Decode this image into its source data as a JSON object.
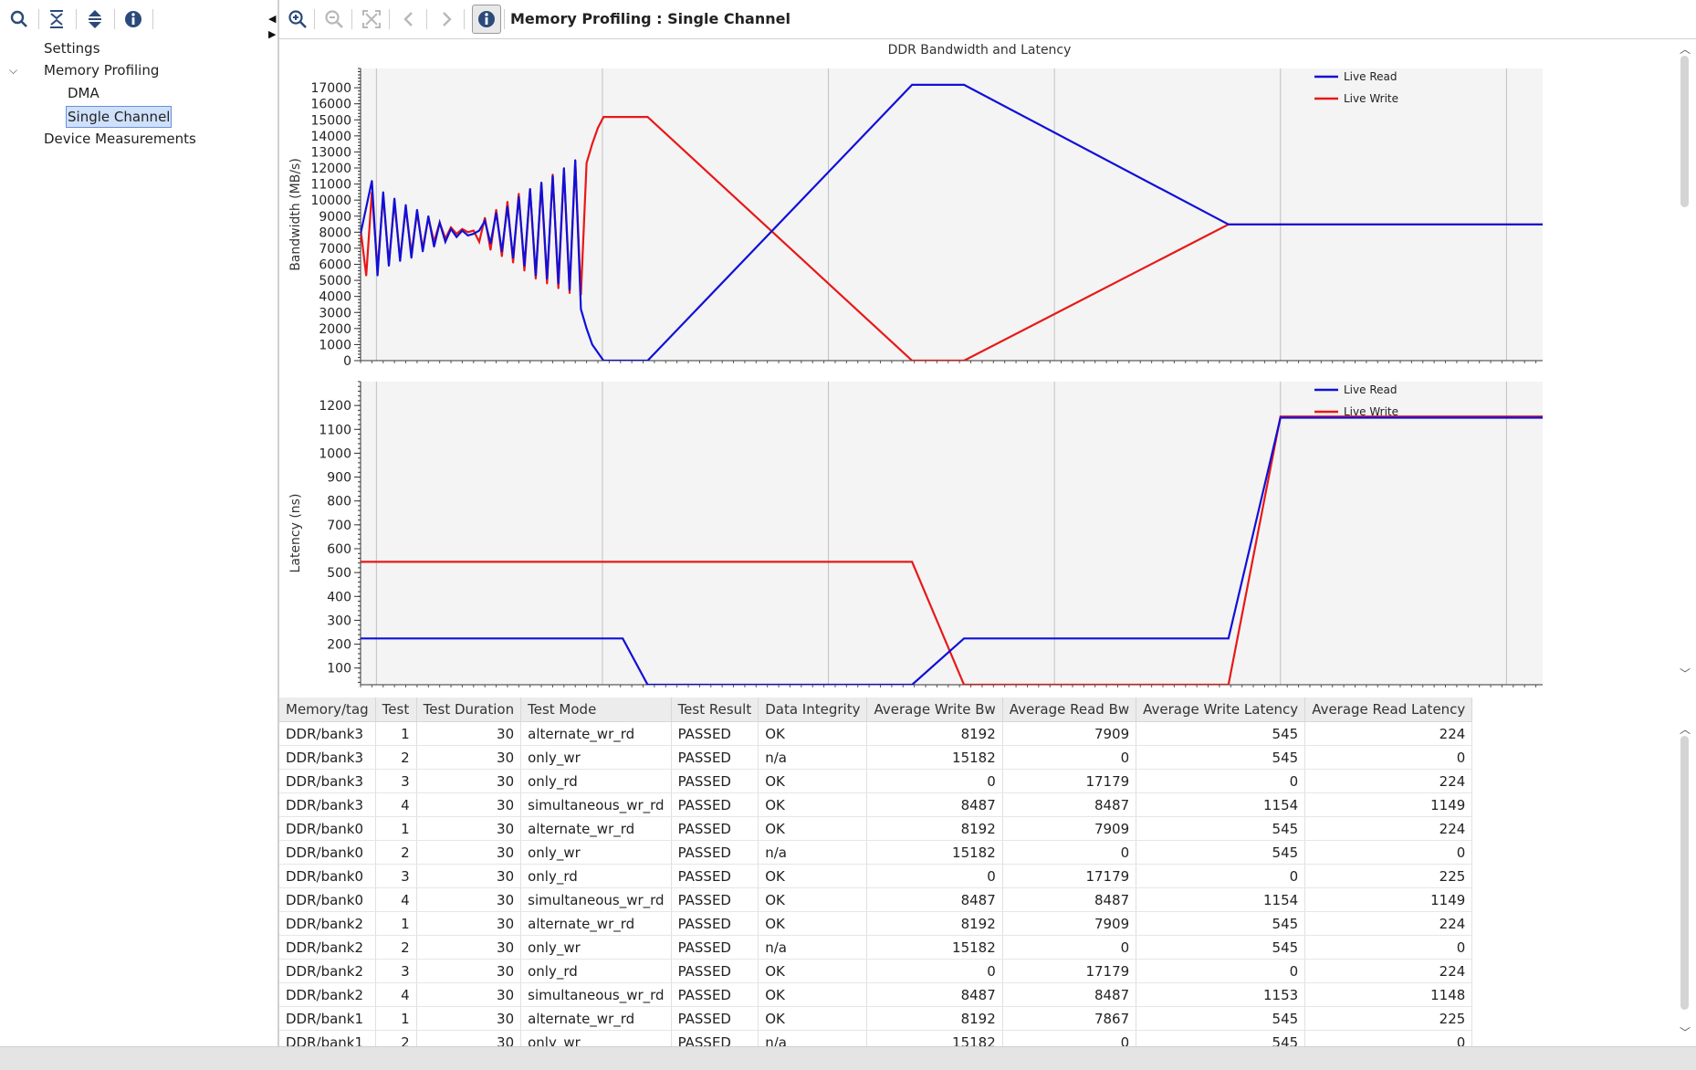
{
  "left_toolbar": {
    "icons": [
      "search-icon",
      "collapse-all-icon",
      "expand-all-icon",
      "info-icon"
    ]
  },
  "tree": {
    "items": [
      {
        "label": "Settings"
      },
      {
        "label": "Memory Profiling"
      },
      {
        "label": "DMA"
      },
      {
        "label": "Single Channel"
      },
      {
        "label": "Device Measurements"
      }
    ]
  },
  "right_toolbar": {
    "title": "Memory Profiling : Single Channel",
    "icons": [
      "zoom-in-icon",
      "zoom-out-icon",
      "fit-icon",
      "back-icon",
      "forward-icon",
      "info-icon"
    ]
  },
  "colors": {
    "read": "#1010d8",
    "write": "#e81818",
    "plot_bg": "#f4f4f4",
    "grid": "#c0c0c0"
  },
  "chart_data": [
    {
      "type": "line",
      "title": "DDR Bandwidth and Latency",
      "xlabel": "",
      "ylabel": "Bandwidth (MB/s)",
      "ylim": [
        0,
        18200
      ],
      "yticks": [
        0,
        1000,
        2000,
        3000,
        4000,
        5000,
        6000,
        7000,
        8000,
        9000,
        10000,
        11000,
        12000,
        13000,
        14000,
        15000,
        16000,
        17000
      ],
      "x_gridlines": [
        0.7,
        10.7,
        20.7,
        30.7,
        40.7,
        50.7
      ],
      "xlim": [
        0,
        52.3
      ],
      "legend": [
        "Live Read",
        "Live Write"
      ],
      "series": [
        {
          "name": "Live Read",
          "x": [
            0,
            0.5,
            0.75,
            1.0,
            1.25,
            1.5,
            1.75,
            2.0,
            2.25,
            2.5,
            2.75,
            3.0,
            3.25,
            3.5,
            3.75,
            4.0,
            4.25,
            4.5,
            4.75,
            5.0,
            5.25,
            5.5,
            5.75,
            6.0,
            6.25,
            6.5,
            6.75,
            7.0,
            7.25,
            7.5,
            7.75,
            8.0,
            8.25,
            8.5,
            8.75,
            9.0,
            9.25,
            9.5,
            9.75,
            10.0,
            10.25,
            10.5,
            10.75,
            12.7,
            24.4,
            26.7,
            38.4,
            40.7,
            52.3
          ],
          "y": [
            7900,
            11200,
            5300,
            10500,
            5900,
            10100,
            6200,
            9700,
            6400,
            9400,
            6800,
            9000,
            7100,
            8600,
            7400,
            8200,
            7700,
            8100,
            7800,
            7900,
            8100,
            8700,
            7300,
            9200,
            6800,
            9600,
            6400,
            10200,
            5900,
            10700,
            5300,
            11100,
            5100,
            11500,
            4800,
            12000,
            4400,
            12500,
            3200,
            2000,
            1000,
            500,
            0,
            0,
            17180,
            17180,
            8487,
            8487,
            8487
          ]
        },
        {
          "name": "Live Write",
          "x": [
            0,
            0.25,
            0.5,
            0.75,
            1.0,
            1.25,
            1.5,
            1.75,
            2.0,
            2.25,
            2.5,
            2.75,
            3.0,
            3.25,
            3.5,
            3.75,
            4.0,
            4.25,
            4.5,
            4.75,
            5.0,
            5.25,
            5.5,
            5.75,
            6.0,
            6.25,
            6.5,
            6.75,
            7.0,
            7.25,
            7.5,
            7.75,
            8.0,
            8.25,
            8.5,
            8.75,
            9.0,
            9.25,
            9.5,
            9.75,
            10.0,
            10.25,
            10.5,
            10.75,
            12.7,
            24.4,
            26.7,
            38.4,
            40.7,
            52.3
          ],
          "y": [
            8200,
            5300,
            10500,
            5700,
            10300,
            6000,
            9900,
            6300,
            9500,
            6700,
            9200,
            7000,
            8900,
            7400,
            8600,
            7600,
            8300,
            7900,
            8200,
            8000,
            8100,
            7400,
            8900,
            6900,
            9400,
            6500,
            9900,
            6100,
            10400,
            5600,
            10700,
            5100,
            11000,
            4800,
            11600,
            4500,
            11900,
            4200,
            12400,
            4100,
            12300,
            13500,
            14500,
            15180,
            15180,
            0,
            0,
            8487,
            8487,
            8487
          ]
        }
      ]
    },
    {
      "type": "line",
      "title": "",
      "xlabel": "",
      "ylabel": "Latency (ns)",
      "ylim": [
        30,
        1300
      ],
      "yticks": [
        100,
        200,
        300,
        400,
        500,
        600,
        700,
        800,
        900,
        1000,
        1100,
        1200
      ],
      "x_gridlines": [
        0.7,
        10.7,
        20.7,
        30.7,
        40.7,
        50.7
      ],
      "xlim": [
        0,
        52.3
      ],
      "legend": [
        "Live Read",
        "Live Write"
      ],
      "series": [
        {
          "name": "Live Read",
          "x": [
            0,
            11.6,
            12.7,
            24.4,
            26.7,
            38.4,
            40.7,
            52.3
          ],
          "y": [
            224,
            224,
            30,
            30,
            224,
            224,
            1149,
            1149
          ]
        },
        {
          "name": "Live Write",
          "x": [
            0,
            24.4,
            26.7,
            38.4,
            40.7,
            52.3
          ],
          "y": [
            545,
            545,
            30,
            30,
            1154,
            1154
          ]
        }
      ]
    }
  ],
  "table": {
    "columns": [
      "Memory/tag",
      "Test",
      "Test Duration",
      "Test Mode",
      "Test Result",
      "Data Integrity",
      "Average Write Bw",
      "Average Read Bw",
      "Average Write Latency",
      "Average Read Latency"
    ],
    "rows": [
      [
        "DDR/bank3",
        "1",
        "30",
        "alternate_wr_rd",
        "PASSED",
        "OK",
        "8192",
        "7909",
        "545",
        "224"
      ],
      [
        "DDR/bank3",
        "2",
        "30",
        "only_wr",
        "PASSED",
        "n/a",
        "15182",
        "0",
        "545",
        "0"
      ],
      [
        "DDR/bank3",
        "3",
        "30",
        "only_rd",
        "PASSED",
        "OK",
        "0",
        "17179",
        "0",
        "224"
      ],
      [
        "DDR/bank3",
        "4",
        "30",
        "simultaneous_wr_rd",
        "PASSED",
        "OK",
        "8487",
        "8487",
        "1154",
        "1149"
      ],
      [
        "DDR/bank0",
        "1",
        "30",
        "alternate_wr_rd",
        "PASSED",
        "OK",
        "8192",
        "7909",
        "545",
        "224"
      ],
      [
        "DDR/bank0",
        "2",
        "30",
        "only_wr",
        "PASSED",
        "n/a",
        "15182",
        "0",
        "545",
        "0"
      ],
      [
        "DDR/bank0",
        "3",
        "30",
        "only_rd",
        "PASSED",
        "OK",
        "0",
        "17179",
        "0",
        "225"
      ],
      [
        "DDR/bank0",
        "4",
        "30",
        "simultaneous_wr_rd",
        "PASSED",
        "OK",
        "8487",
        "8487",
        "1154",
        "1149"
      ],
      [
        "DDR/bank2",
        "1",
        "30",
        "alternate_wr_rd",
        "PASSED",
        "OK",
        "8192",
        "7909",
        "545",
        "224"
      ],
      [
        "DDR/bank2",
        "2",
        "30",
        "only_wr",
        "PASSED",
        "n/a",
        "15182",
        "0",
        "545",
        "0"
      ],
      [
        "DDR/bank2",
        "3",
        "30",
        "only_rd",
        "PASSED",
        "OK",
        "0",
        "17179",
        "0",
        "224"
      ],
      [
        "DDR/bank2",
        "4",
        "30",
        "simultaneous_wr_rd",
        "PASSED",
        "OK",
        "8487",
        "8487",
        "1153",
        "1148"
      ],
      [
        "DDR/bank1",
        "1",
        "30",
        "alternate_wr_rd",
        "PASSED",
        "OK",
        "8192",
        "7867",
        "545",
        "225"
      ],
      [
        "DDR/bank1",
        "2",
        "30",
        "only_wr",
        "PASSED",
        "n/a",
        "15182",
        "0",
        "545",
        "0"
      ]
    ]
  }
}
